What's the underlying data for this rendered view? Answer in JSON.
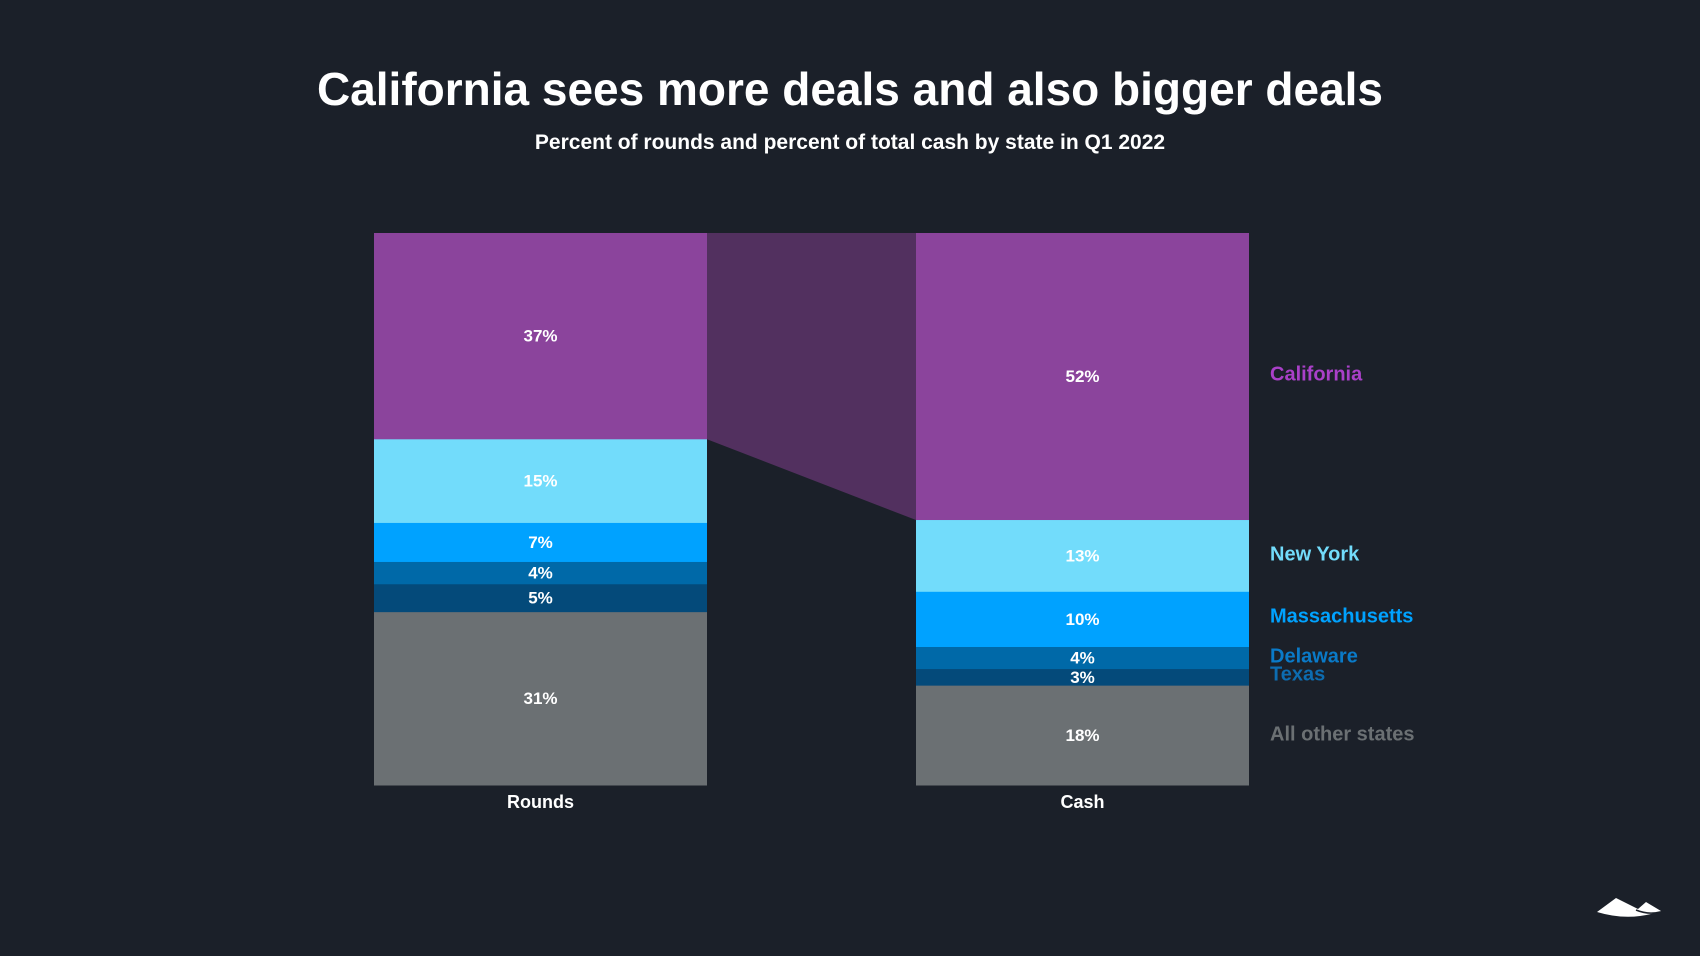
{
  "title": "California sees more deals and also bigger deals",
  "subtitle": "Percent of rounds and percent of total cash by state in Q1 2022",
  "logo": "mountain-logo",
  "chart_data": {
    "type": "bar",
    "stacked": true,
    "title": "California sees more deals and also bigger deals",
    "subtitle": "Percent of rounds and percent of total cash by state in Q1 2022",
    "categories": [
      "Rounds",
      "Cash"
    ],
    "unit": "%",
    "series": [
      {
        "name": "California",
        "values": [
          37,
          52
        ],
        "color": "#8b449c",
        "label_color": "#a940c8"
      },
      {
        "name": "New York",
        "values": [
          15,
          13
        ],
        "color": "#72dcfb",
        "label_color": "#72dcfb"
      },
      {
        "name": "Massachusetts",
        "values": [
          7,
          10
        ],
        "color": "#00a2ff",
        "label_color": "#00a2ff"
      },
      {
        "name": "Delaware",
        "values": [
          4,
          4
        ],
        "color": "#0069a8",
        "label_color": "#0a7ac8"
      },
      {
        "name": "Texas",
        "values": [
          5,
          3
        ],
        "color": "#044a7a",
        "label_color": "#0d6cb0"
      },
      {
        "name": "All other states",
        "values": [
          31,
          18
        ],
        "color": "#6b7073",
        "label_color": "#6b7073"
      }
    ],
    "highlight_connector": {
      "series": "California",
      "color": "#52305f"
    },
    "legend_placement": "right",
    "grid": false
  }
}
